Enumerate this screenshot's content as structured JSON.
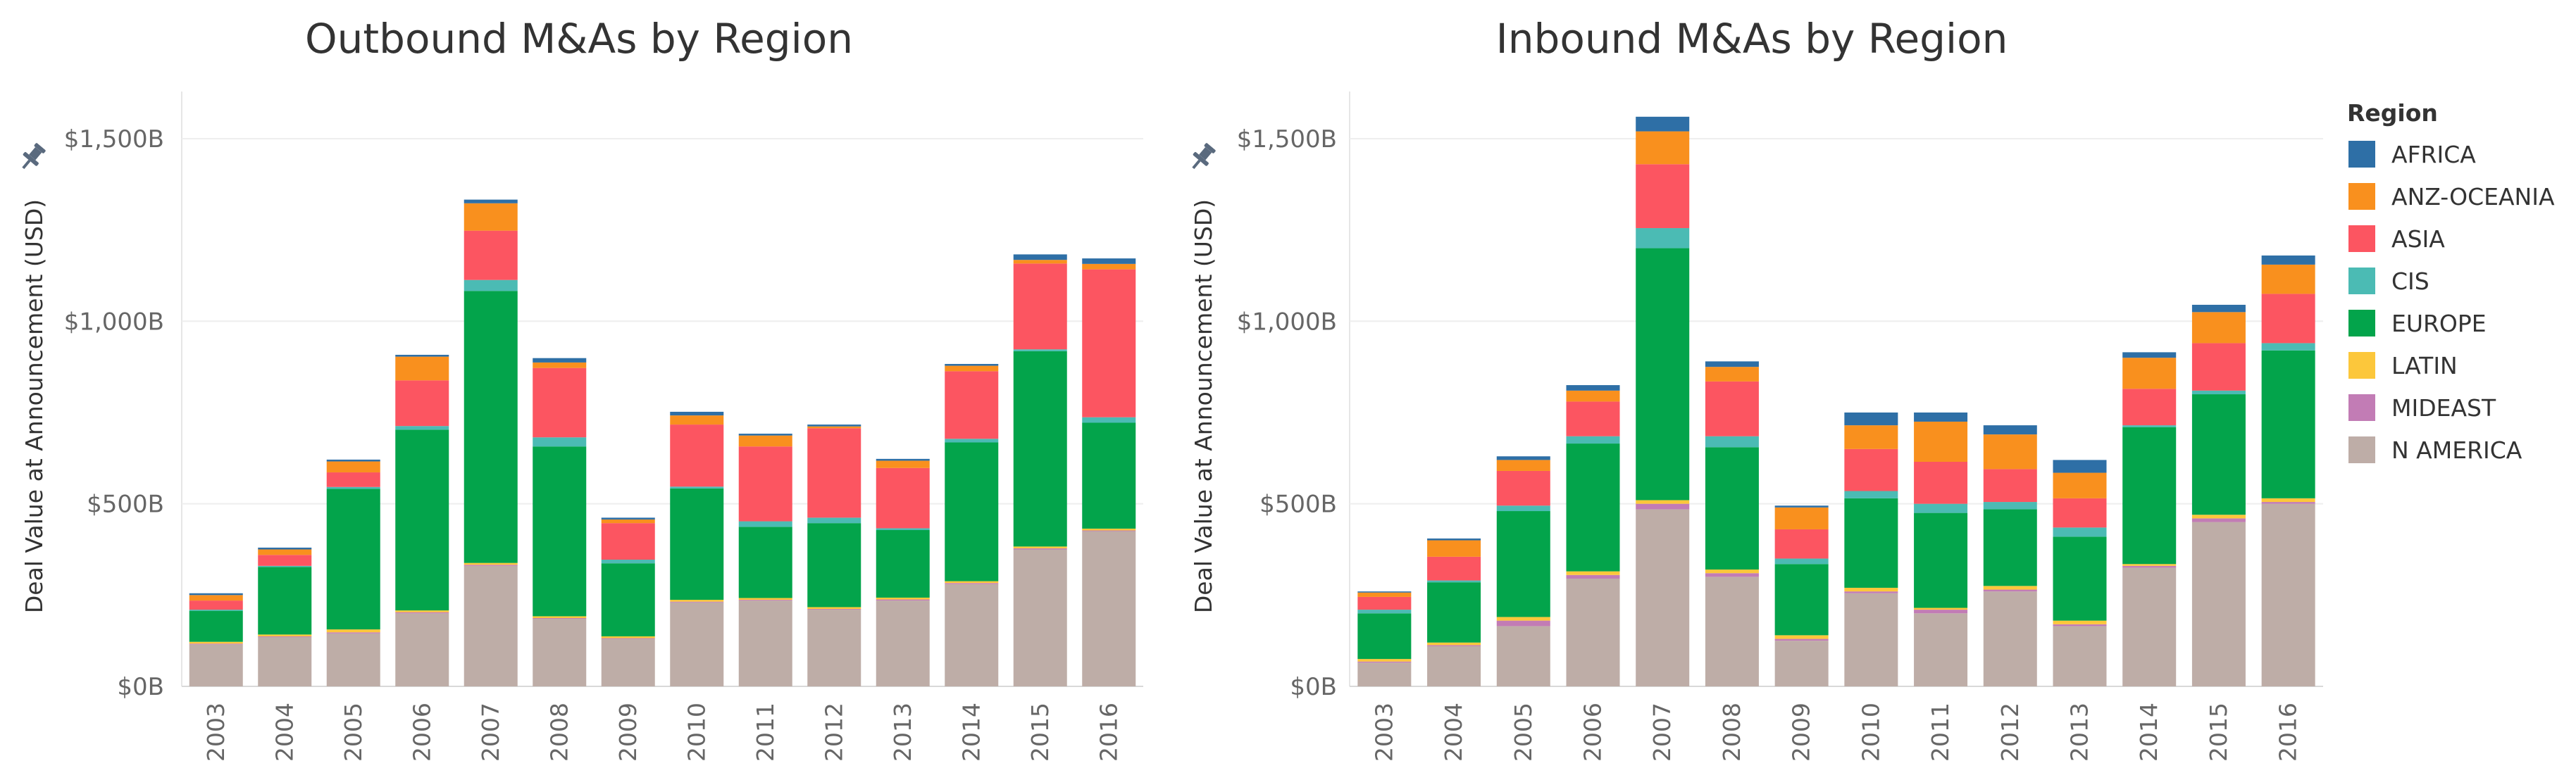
{
  "legend": {
    "title": "Region",
    "items": [
      {
        "name": "AFRICA",
        "color": "#2e6fa6"
      },
      {
        "name": "ANZ-OCEANIA",
        "color": "#f9901e"
      },
      {
        "name": "ASIA",
        "color": "#fc5561"
      },
      {
        "name": "CIS",
        "color": "#4bbbb4"
      },
      {
        "name": "EUROPE",
        "color": "#03a44b"
      },
      {
        "name": "LATIN",
        "color": "#fcc73b"
      },
      {
        "name": "MIDEAST",
        "color": "#c27cb5"
      },
      {
        "name": "N AMERICA",
        "color": "#beada7"
      }
    ]
  },
  "chart_data": [
    {
      "type": "bar",
      "stacked": true,
      "title": "Outbound M&As by Region",
      "ylabel": "Deal Value at Announcement (USD)",
      "xlabel": "",
      "ylim": [
        0,
        1600
      ],
      "yticks": [
        {
          "value": 0,
          "label": "$0B"
        },
        {
          "value": 500,
          "label": "$500B"
        },
        {
          "value": 1000,
          "label": "$1,000B"
        },
        {
          "value": 1500,
          "label": "$1,500B"
        }
      ],
      "categories": [
        "2003",
        "2004",
        "2005",
        "2006",
        "2007",
        "2008",
        "2009",
        "2010",
        "2011",
        "2012",
        "2013",
        "2014",
        "2015",
        "2016"
      ],
      "series": [
        {
          "name": "N AMERICA",
          "values": [
            115,
            135,
            145,
            200,
            330,
            185,
            130,
            230,
            235,
            210,
            235,
            280,
            375,
            425
          ]
        },
        {
          "name": "MIDEAST",
          "values": [
            2,
            2,
            3,
            3,
            3,
            2,
            2,
            2,
            2,
            2,
            3,
            3,
            3,
            2
          ]
        },
        {
          "name": "LATIN",
          "values": [
            5,
            5,
            8,
            5,
            5,
            5,
            5,
            5,
            5,
            5,
            5,
            5,
            5,
            5
          ]
        },
        {
          "name": "EUROPE",
          "values": [
            85,
            185,
            385,
            495,
            745,
            465,
            200,
            305,
            195,
            230,
            185,
            380,
            535,
            290
          ]
        },
        {
          "name": "CIS",
          "values": [
            3,
            3,
            5,
            10,
            30,
            25,
            10,
            5,
            15,
            15,
            5,
            10,
            5,
            15
          ]
        },
        {
          "name": "ASIA",
          "values": [
            25,
            30,
            40,
            125,
            135,
            190,
            100,
            170,
            205,
            245,
            165,
            185,
            235,
            405
          ]
        },
        {
          "name": "ANZ-OCEANIA",
          "values": [
            15,
            15,
            30,
            65,
            75,
            15,
            10,
            25,
            30,
            5,
            20,
            15,
            10,
            15
          ]
        },
        {
          "name": "AFRICA",
          "values": [
            5,
            5,
            5,
            5,
            10,
            12,
            5,
            10,
            5,
            5,
            5,
            5,
            15,
            15
          ]
        }
      ]
    },
    {
      "type": "bar",
      "stacked": true,
      "title": "Inbound M&As by Region",
      "ylabel": "Deal Value at Announcement (USD)",
      "xlabel": "",
      "ylim": [
        0,
        1600
      ],
      "yticks": [
        {
          "value": 0,
          "label": "$0B"
        },
        {
          "value": 500,
          "label": "$500B"
        },
        {
          "value": 1000,
          "label": "$1,000B"
        },
        {
          "value": 1500,
          "label": "$1,500B"
        }
      ],
      "categories": [
        "2003",
        "2004",
        "2005",
        "2006",
        "2007",
        "2008",
        "2009",
        "2010",
        "2011",
        "2012",
        "2013",
        "2014",
        "2015",
        "2016"
      ],
      "series": [
        {
          "name": "N AMERICA",
          "values": [
            65,
            110,
            165,
            295,
            485,
            300,
            125,
            255,
            200,
            260,
            165,
            325,
            450,
            500
          ]
        },
        {
          "name": "MIDEAST",
          "values": [
            3,
            3,
            15,
            10,
            15,
            10,
            5,
            5,
            10,
            5,
            5,
            5,
            10,
            5
          ]
        },
        {
          "name": "LATIN",
          "values": [
            7,
            7,
            10,
            10,
            10,
            10,
            10,
            10,
            5,
            10,
            10,
            5,
            10,
            10
          ]
        },
        {
          "name": "EUROPE",
          "values": [
            125,
            165,
            290,
            350,
            690,
            335,
            195,
            245,
            260,
            210,
            230,
            375,
            330,
            405
          ]
        },
        {
          "name": "CIS",
          "values": [
            10,
            5,
            15,
            20,
            55,
            30,
            15,
            20,
            25,
            20,
            25,
            5,
            10,
            20
          ]
        },
        {
          "name": "ASIA",
          "values": [
            35,
            65,
            95,
            95,
            175,
            150,
            80,
            115,
            115,
            90,
            80,
            100,
            130,
            135
          ]
        },
        {
          "name": "ANZ-OCEANIA",
          "values": [
            12,
            45,
            30,
            30,
            90,
            40,
            60,
            65,
            110,
            95,
            70,
            85,
            85,
            80
          ]
        },
        {
          "name": "AFRICA",
          "values": [
            3,
            5,
            10,
            15,
            40,
            15,
            5,
            35,
            25,
            25,
            35,
            15,
            20,
            25
          ]
        }
      ]
    }
  ]
}
